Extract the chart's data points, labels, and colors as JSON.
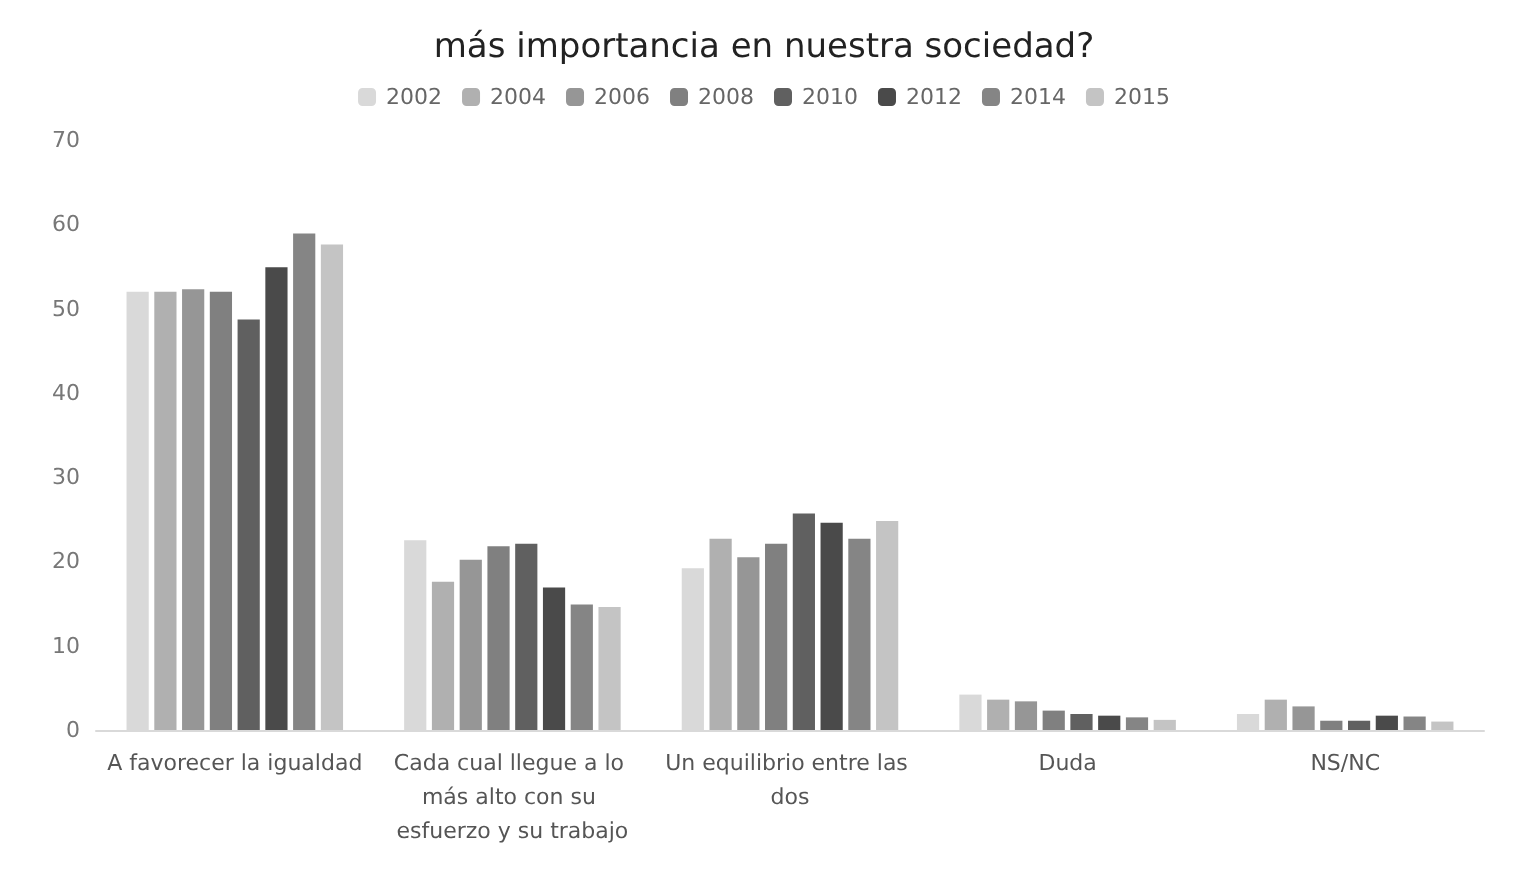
{
  "chart_data": {
    "type": "bar",
    "title": "más importancia en nuestra sociedad?",
    "categories": [
      "A favorecer la igualdad",
      "Cada cual llegue a lo más alto con su esfuerzo y su trabajo",
      "Un equilibrio entre las dos",
      "Duda",
      "NS/NC"
    ],
    "series": [
      {
        "name": "2002",
        "color": "#d9d9d9",
        "values": [
          52.0,
          22.5,
          19.2,
          4.2,
          1.9
        ]
      },
      {
        "name": "2004",
        "color": "#b0b0b0",
        "values": [
          52.0,
          17.6,
          22.7,
          3.6,
          3.6
        ]
      },
      {
        "name": "2006",
        "color": "#969696",
        "values": [
          52.3,
          20.2,
          20.5,
          3.4,
          2.8
        ]
      },
      {
        "name": "2008",
        "color": "#808080",
        "values": [
          52.0,
          21.8,
          22.1,
          2.3,
          1.1
        ]
      },
      {
        "name": "2010",
        "color": "#606060",
        "values": [
          48.7,
          22.1,
          25.7,
          1.9,
          1.1
        ]
      },
      {
        "name": "2012",
        "color": "#4a4a4a",
        "values": [
          54.9,
          16.9,
          24.6,
          1.7,
          1.7
        ]
      },
      {
        "name": "2014",
        "color": "#858585",
        "values": [
          58.9,
          14.9,
          22.7,
          1.5,
          1.6
        ]
      },
      {
        "name": "2015",
        "color": "#c4c4c4",
        "values": [
          57.6,
          14.6,
          24.8,
          1.2,
          1.0
        ]
      }
    ],
    "ylim": [
      0,
      70
    ],
    "yticks": [
      0,
      10,
      20,
      30,
      40,
      50,
      60,
      70
    ],
    "grid": false,
    "legend": "top"
  }
}
